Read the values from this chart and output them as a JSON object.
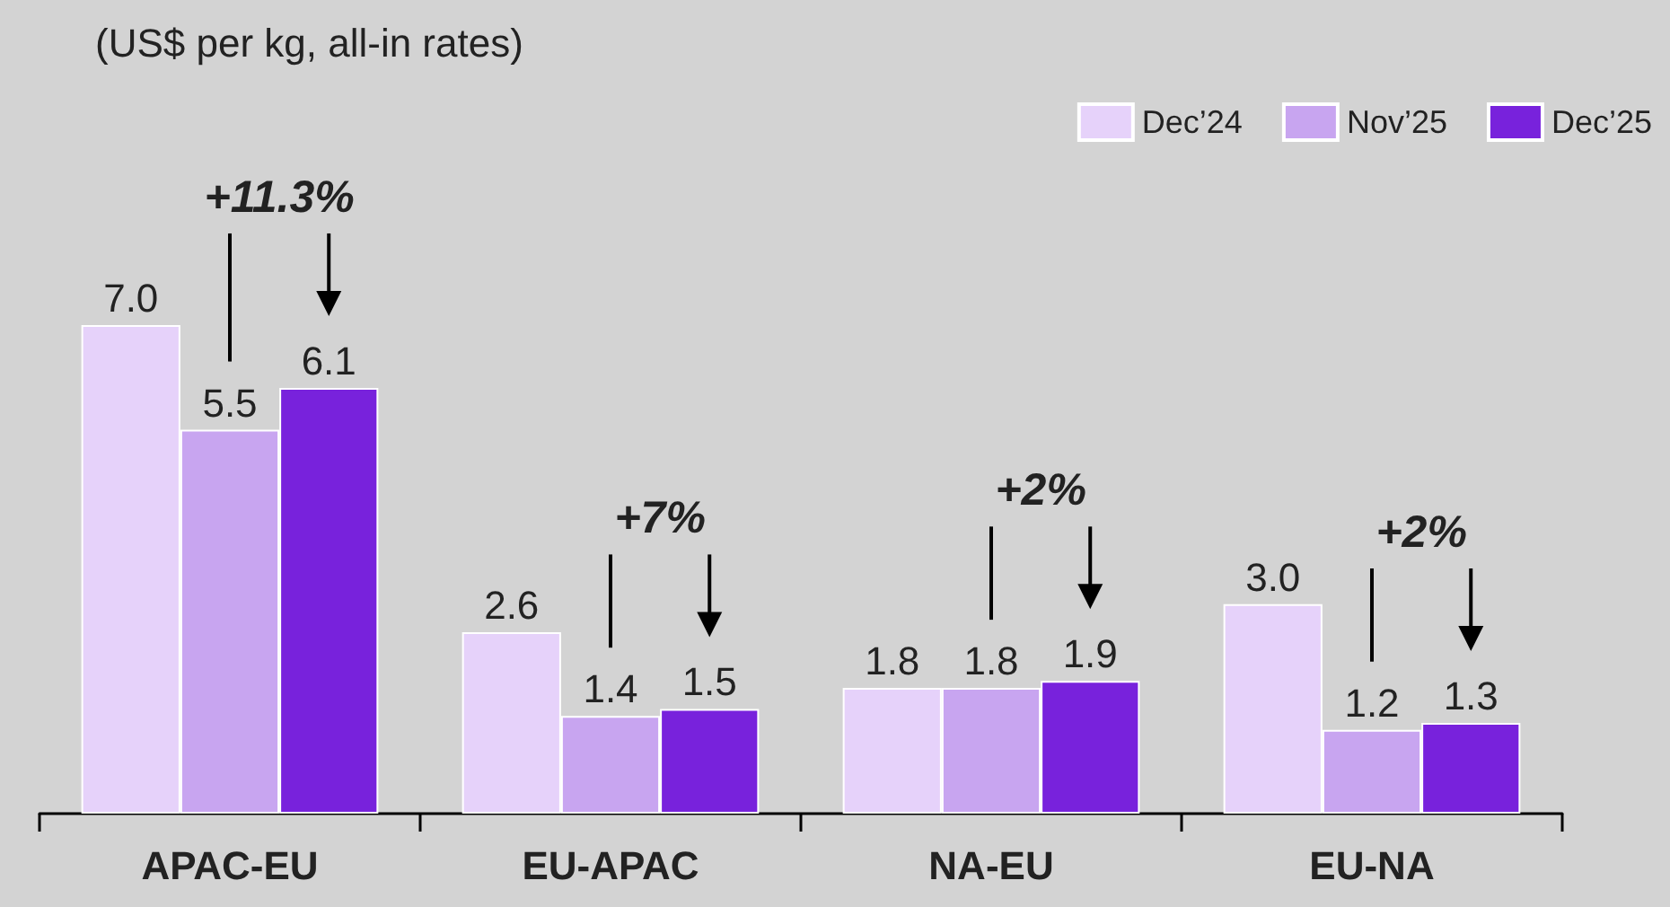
{
  "chart_data": {
    "type": "bar",
    "subtitle": "(US$ per kg, all-in rates)",
    "categories": [
      "APAC-EU",
      "EU-APAC",
      "NA-EU",
      "EU-NA"
    ],
    "series": [
      {
        "name": "Dec’24",
        "color": "#e6d2fa",
        "values": [
          7.0,
          2.6,
          1.8,
          3.0
        ],
        "value_labels": [
          "7.0",
          "2.6",
          "1.8",
          "3.0"
        ]
      },
      {
        "name": "Nov’25",
        "color": "#c8a5f0",
        "values": [
          5.5,
          1.4,
          1.8,
          1.2
        ],
        "value_labels": [
          "5.5",
          "1.4",
          "1.8",
          "1.2"
        ]
      },
      {
        "name": "Dec’25",
        "color": "#7822dc",
        "values": [
          6.1,
          1.5,
          1.9,
          1.3
        ],
        "value_labels": [
          "6.1",
          "1.5",
          "1.9",
          "1.3"
        ]
      }
    ],
    "grid": false,
    "legend": "top right",
    "annotations": [
      "+11.3%",
      "+7%",
      "+2%",
      "+2%"
    ]
  }
}
